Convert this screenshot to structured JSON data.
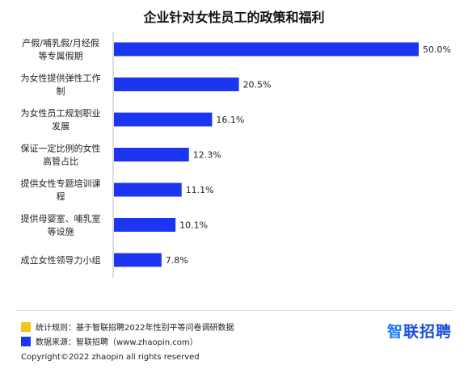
{
  "chart_data": {
    "type": "bar",
    "orientation": "horizontal",
    "title": "企业针对女性员工的政策和福利",
    "categories": [
      [
        "产假/哺乳假/月经假",
        "等专属假期"
      ],
      [
        "为女性提供弹性工作",
        "制"
      ],
      [
        "为女性员工规划职业",
        "发展"
      ],
      [
        "保证一定比例的女性",
        "高管占比"
      ],
      [
        "提供女性专题培训课",
        "程"
      ],
      [
        "提供母婴室、哺乳室",
        "等设施"
      ],
      [
        "成立女性领导力小组"
      ]
    ],
    "values": [
      50.0,
      20.5,
      16.1,
      12.3,
      11.1,
      10.1,
      7.8
    ],
    "value_labels": [
      "50.0%",
      "20.5%",
      "16.1%",
      "12.3%",
      "11.1%",
      "10.1%",
      "7.8%"
    ],
    "xlim": [
      0,
      50
    ],
    "bar_color": "#1c35f0",
    "grid": false,
    "legend": "none"
  },
  "footer": {
    "note1": "统计规则：基于智联招聘2022年性别平等问卷调研数据",
    "note1_color": "#f5c518",
    "note2": "数据来源：智联招聘（www.zhaopin.com）",
    "note2_color": "#1c35f0",
    "copyright": "Copyright©2022 zhaopin all rights reserved",
    "logo_first": "智",
    "logo_rest": "联招聘"
  }
}
